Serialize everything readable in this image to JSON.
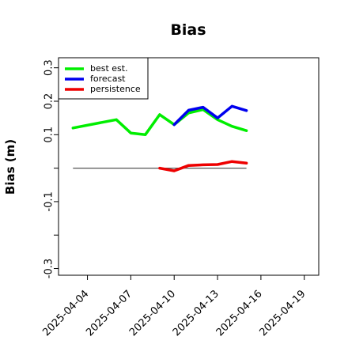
{
  "chart_data": {
    "type": "line",
    "title": "Bias",
    "xlabel": "",
    "ylabel": "Bias (m)",
    "ylim": [
      -0.32,
      0.33
    ],
    "xlim": [
      "2025-04-02",
      "2025-04-20"
    ],
    "y_ticks": [
      {
        "value": 0.3,
        "label": "0.3"
      },
      {
        "value": 0.2,
        "label": "0.2"
      },
      {
        "value": 0.1,
        "label": "0.1"
      },
      {
        "value": 0.0,
        "label": ""
      },
      {
        "value": -0.1,
        "label": "-0.1"
      },
      {
        "value": -0.2,
        "label": ""
      },
      {
        "value": -0.3,
        "label": "-0.3"
      }
    ],
    "x_ticks": [
      {
        "date": "2025-04-04",
        "label": "2025-04-04",
        "color": "#000000"
      },
      {
        "date": "2025-04-07",
        "label": "2025-04-07",
        "color": "#000000"
      },
      {
        "date": "2025-04-10",
        "label": "2025-04-10",
        "color": "#228B22"
      },
      {
        "date": "2025-04-13",
        "label": "2025-04-13",
        "color": "#000000"
      },
      {
        "date": "2025-04-16",
        "label": "2025-04-16",
        "color": "#000000"
      },
      {
        "date": "2025-04-19",
        "label": "2025-04-19",
        "color": "#000000"
      }
    ],
    "reference_line": {
      "y": 0.0,
      "x_start": "2025-04-03",
      "x_end": "2025-04-15",
      "color": "#555555"
    },
    "legend": {
      "placement": "top-left"
    },
    "series": [
      {
        "name": "best est.",
        "color": "#00ee00",
        "points": [
          {
            "x": "2025-04-03",
            "y": 0.12
          },
          {
            "x": "2025-04-06",
            "y": 0.145
          },
          {
            "x": "2025-04-07",
            "y": 0.105
          },
          {
            "x": "2025-04-08",
            "y": 0.1
          },
          {
            "x": "2025-04-09",
            "y": 0.16
          },
          {
            "x": "2025-04-10",
            "y": 0.13
          },
          {
            "x": "2025-04-11",
            "y": 0.165
          },
          {
            "x": "2025-04-12",
            "y": 0.175
          },
          {
            "x": "2025-04-13",
            "y": 0.145
          },
          {
            "x": "2025-04-14",
            "y": 0.125
          },
          {
            "x": "2025-04-15",
            "y": 0.112
          }
        ]
      },
      {
        "name": "forecast",
        "color": "#0000ee",
        "points": [
          {
            "x": "2025-04-10",
            "y": 0.13
          },
          {
            "x": "2025-04-11",
            "y": 0.173
          },
          {
            "x": "2025-04-12",
            "y": 0.182
          },
          {
            "x": "2025-04-13",
            "y": 0.15
          },
          {
            "x": "2025-04-14",
            "y": 0.185
          },
          {
            "x": "2025-04-15",
            "y": 0.172
          }
        ]
      },
      {
        "name": "persistence",
        "color": "#ee0000",
        "points": [
          {
            "x": "2025-04-09",
            "y": 0.0
          },
          {
            "x": "2025-04-10",
            "y": -0.008
          },
          {
            "x": "2025-04-11",
            "y": 0.008
          },
          {
            "x": "2025-04-12",
            "y": 0.01
          },
          {
            "x": "2025-04-13",
            "y": 0.011
          },
          {
            "x": "2025-04-14",
            "y": 0.02
          },
          {
            "x": "2025-04-15",
            "y": 0.015
          }
        ]
      }
    ]
  }
}
